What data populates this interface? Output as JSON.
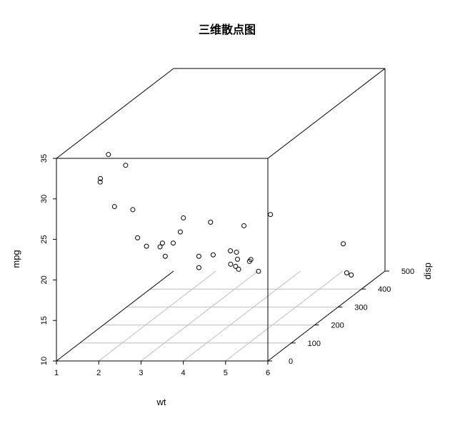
{
  "chart_data": {
    "type": "scatter",
    "title": "三维散点图",
    "xlabel": "wt",
    "ylabel": "disp",
    "zlabel": "mpg",
    "xlim": [
      1,
      6
    ],
    "ylim": [
      0,
      500
    ],
    "zlim": [
      10,
      35
    ],
    "xticks": [
      "1",
      "2",
      "3",
      "4",
      "5",
      "6"
    ],
    "yticks": [
      "0",
      "100",
      "200",
      "300",
      "400",
      "500"
    ],
    "zticks": [
      "10",
      "15",
      "20",
      "25",
      "30",
      "35"
    ],
    "grid": true,
    "colors": {
      "background": "#ffffff",
      "axis": "#000000",
      "grid": "#bebebe",
      "point": "#000000"
    },
    "points": [
      {
        "x": 2.62,
        "y": 160,
        "z": 21.0
      },
      {
        "x": 2.875,
        "y": 160,
        "z": 21.0
      },
      {
        "x": 2.32,
        "y": 108,
        "z": 22.8
      },
      {
        "x": 3.215,
        "y": 258,
        "z": 21.4
      },
      {
        "x": 3.44,
        "y": 360,
        "z": 18.7
      },
      {
        "x": 3.46,
        "y": 225,
        "z": 18.1
      },
      {
        "x": 3.57,
        "y": 360,
        "z": 14.3
      },
      {
        "x": 3.19,
        "y": 146.7,
        "z": 24.4
      },
      {
        "x": 3.15,
        "y": 140.8,
        "z": 22.8
      },
      {
        "x": 3.44,
        "y": 167.6,
        "z": 19.2
      },
      {
        "x": 3.44,
        "y": 167.6,
        "z": 17.8
      },
      {
        "x": 4.07,
        "y": 275.8,
        "z": 16.4
      },
      {
        "x": 3.73,
        "y": 275.8,
        "z": 17.3
      },
      {
        "x": 3.78,
        "y": 275.8,
        "z": 15.2
      },
      {
        "x": 5.25,
        "y": 472,
        "z": 10.4
      },
      {
        "x": 5.424,
        "y": 460,
        "z": 10.4
      },
      {
        "x": 5.345,
        "y": 440,
        "z": 14.7
      },
      {
        "x": 2.2,
        "y": 78.7,
        "z": 32.4
      },
      {
        "x": 1.615,
        "y": 75.7,
        "z": 30.4
      },
      {
        "x": 1.835,
        "y": 71.1,
        "z": 33.9
      },
      {
        "x": 2.465,
        "y": 120.1,
        "z": 21.5
      },
      {
        "x": 3.52,
        "y": 318,
        "z": 15.5
      },
      {
        "x": 3.435,
        "y": 304,
        "z": 15.2
      },
      {
        "x": 3.84,
        "y": 350,
        "z": 13.3
      },
      {
        "x": 3.845,
        "y": 400,
        "z": 19.2
      },
      {
        "x": 1.935,
        "y": 79,
        "z": 27.3
      },
      {
        "x": 2.14,
        "y": 120.3,
        "z": 26.0
      },
      {
        "x": 1.513,
        "y": 95.1,
        "z": 30.4
      },
      {
        "x": 3.17,
        "y": 351,
        "z": 15.8
      },
      {
        "x": 2.77,
        "y": 145,
        "z": 19.7
      },
      {
        "x": 3.57,
        "y": 301,
        "z": 15.0
      },
      {
        "x": 2.78,
        "y": 121,
        "z": 21.4
      }
    ]
  }
}
